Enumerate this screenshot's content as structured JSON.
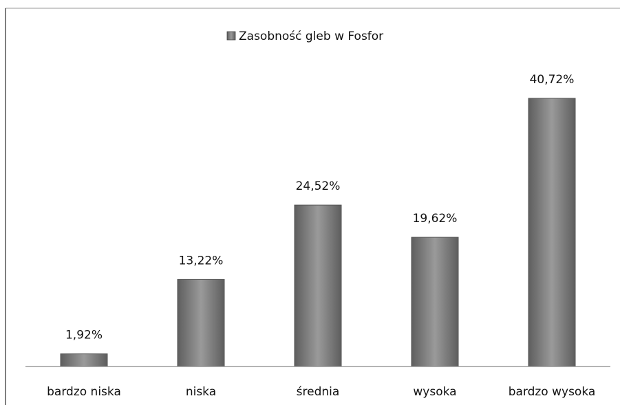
{
  "chart_data": {
    "type": "bar",
    "categories": [
      "bardzo niska",
      "niska",
      "średnia",
      "wysoka",
      "bardzo wysoka"
    ],
    "series": [
      {
        "name": "Zasobność gleb w Fosfor",
        "color": "#8c8c8c",
        "values": [
          1.92,
          13.22,
          24.52,
          19.62,
          40.72
        ],
        "value_labels": [
          "1,92%",
          "13,22%",
          "24,52%",
          "19,62%",
          "40,72%"
        ]
      }
    ],
    "ylim": [
      0,
      45
    ],
    "legend": "top"
  }
}
